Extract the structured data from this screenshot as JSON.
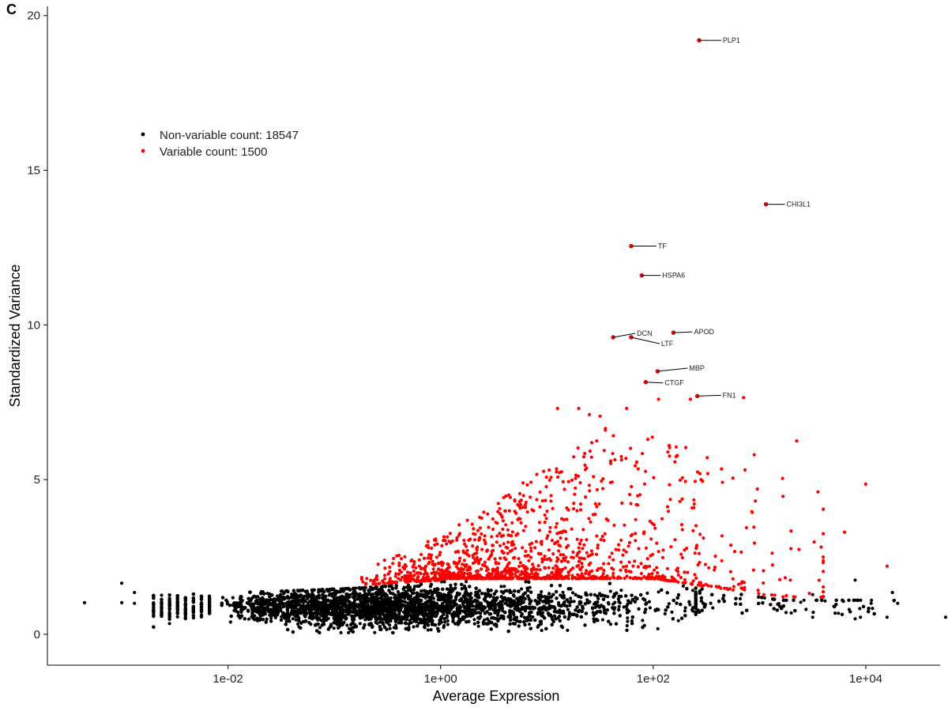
{
  "panel_label": "C",
  "chart_data": {
    "type": "scatter",
    "title": "",
    "xlabel": "Average Expression",
    "ylabel": "Standardized Variance",
    "xscale": "log10",
    "xlim": [
      0.0002,
      50000
    ],
    "ylim": [
      -1,
      20.3
    ],
    "xticks": [
      0.01,
      1,
      100,
      10000
    ],
    "xtick_labels": [
      "1e-02",
      "1e+00",
      "1e+02",
      "1e+04"
    ],
    "yticks": [
      0,
      5,
      10,
      15,
      20
    ],
    "ytick_labels": [
      "0",
      "5",
      "10",
      "15",
      "20"
    ],
    "grid": false,
    "legend_position": "top-left",
    "series": [
      {
        "name": "Non-variable count: 18547",
        "color": "#000000",
        "count": 18547
      },
      {
        "name": "Variable count: 1500",
        "color": "#ff0000",
        "count": 1500
      }
    ],
    "labeled_genes": [
      {
        "gene": "PLP1",
        "x": 270,
        "y": 19.2
      },
      {
        "gene": "CHI3L1",
        "x": 1150,
        "y": 13.9
      },
      {
        "gene": "TF",
        "x": 62,
        "y": 12.55
      },
      {
        "gene": "HSPA6",
        "x": 78,
        "y": 11.6
      },
      {
        "gene": "DCN",
        "x": 42,
        "y": 9.6
      },
      {
        "gene": "APOD",
        "x": 155,
        "y": 9.75
      },
      {
        "gene": "LTF",
        "x": 62,
        "y": 9.6
      },
      {
        "gene": "MBP",
        "x": 110,
        "y": 8.5
      },
      {
        "gene": "CTGF",
        "x": 85,
        "y": 8.15
      },
      {
        "gene": "FN1",
        "x": 260,
        "y": 7.7
      }
    ]
  }
}
